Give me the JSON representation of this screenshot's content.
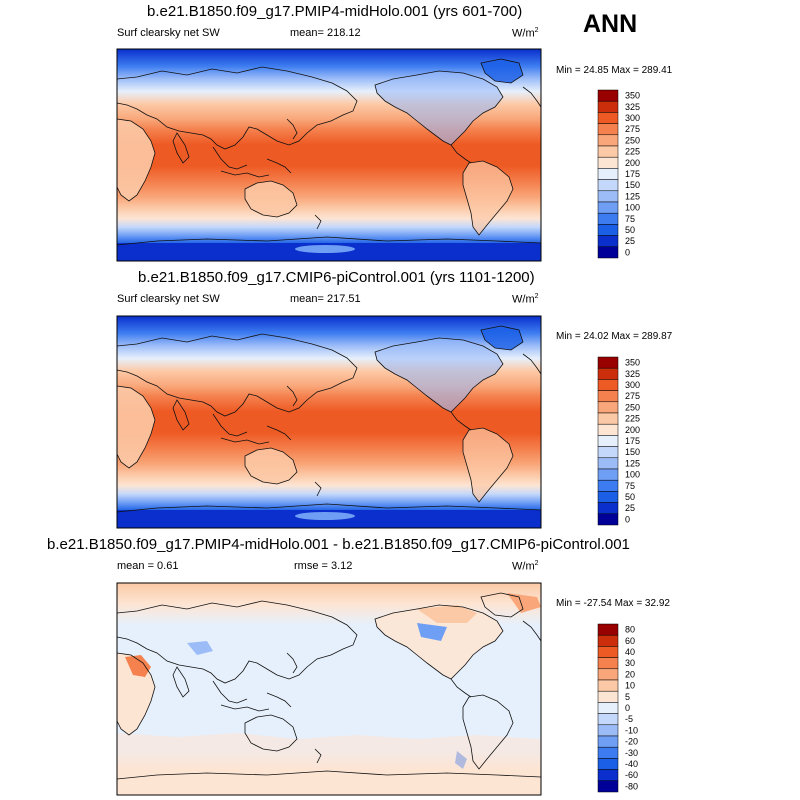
{
  "season": "ANN",
  "chart_data": [
    {
      "type": "heatmap",
      "title": "b.e21.B1850.f09_g17.PMIP4-midHolo.001 (yrs 601-700)",
      "variable": "Surf clearsky net SW",
      "mean_text": "mean= 218.12",
      "units": "W/m",
      "units_exp": "2",
      "min_max_text": "Min =  24.85 Max = 289.41",
      "levels": [
        0,
        25,
        50,
        75,
        100,
        125,
        150,
        175,
        200,
        225,
        250,
        275,
        300,
        325,
        350
      ],
      "level_labels": [
        "0",
        "25",
        "50",
        "75",
        "100",
        "125",
        "150",
        "175",
        "200",
        "225",
        "250",
        "275",
        "300",
        "325",
        "350"
      ],
      "colors": [
        "#000099",
        "#0a2fcc",
        "#1a5fe6",
        "#3d7cf0",
        "#6f9ff5",
        "#9cbcf8",
        "#c4d8fb",
        "#e6f0fc",
        "#fde5d4",
        "#fcc9a6",
        "#f9a77a",
        "#f4814e",
        "#ee5a24",
        "#cc2e0c",
        "#990000"
      ]
    },
    {
      "type": "heatmap",
      "title": "b.e21.B1850.f09_g17.CMIP6-piControl.001 (yrs 1101-1200)",
      "variable": "Surf clearsky net SW",
      "mean_text": "mean= 217.51",
      "units": "W/m",
      "units_exp": "2",
      "min_max_text": "Min =  24.02 Max = 289.87",
      "levels": [
        0,
        25,
        50,
        75,
        100,
        125,
        150,
        175,
        200,
        225,
        250,
        275,
        300,
        325,
        350
      ],
      "level_labels": [
        "0",
        "25",
        "50",
        "75",
        "100",
        "125",
        "150",
        "175",
        "200",
        "225",
        "250",
        "275",
        "300",
        "325",
        "350"
      ],
      "colors": [
        "#000099",
        "#0a2fcc",
        "#1a5fe6",
        "#3d7cf0",
        "#6f9ff5",
        "#9cbcf8",
        "#c4d8fb",
        "#e6f0fc",
        "#fde5d4",
        "#fcc9a6",
        "#f9a77a",
        "#f4814e",
        "#ee5a24",
        "#cc2e0c",
        "#990000"
      ]
    },
    {
      "type": "heatmap",
      "title": "b.e21.B1850.f09_g17.PMIP4-midHolo.001 - b.e21.B1850.f09_g17.CMIP6-piControl.001",
      "mean_text": "mean =   0.61",
      "rmse_text": "rmse =   3.12",
      "units": "W/m",
      "units_exp": "2",
      "min_max_text": "Min = -27.54 Max =  32.92",
      "levels": [
        -80,
        -60,
        -40,
        -30,
        -20,
        -10,
        -5,
        0,
        5,
        10,
        20,
        30,
        40,
        60,
        80
      ],
      "level_labels": [
        "-80",
        "-60",
        "-40",
        "-30",
        "-20",
        "-10",
        "-5",
        "0",
        "5",
        "10",
        "20",
        "30",
        "40",
        "60",
        "80"
      ],
      "colors": [
        "#000099",
        "#0a2fcc",
        "#1a5fe6",
        "#3d7cf0",
        "#6f9ff5",
        "#9cbcf8",
        "#c4d8fb",
        "#e6f0fc",
        "#fde5d4",
        "#fcc9a6",
        "#f9a77a",
        "#f4814e",
        "#ee5a24",
        "#cc2e0c",
        "#990000"
      ]
    }
  ]
}
